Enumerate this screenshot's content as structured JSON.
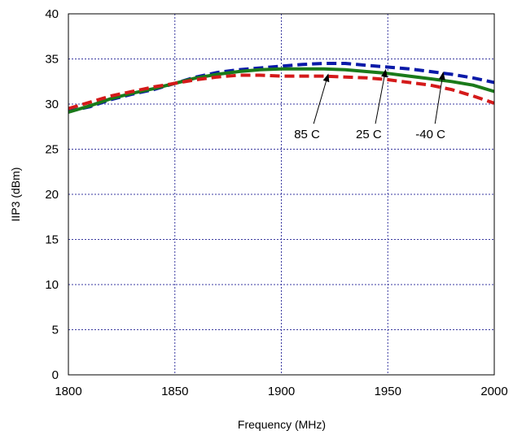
{
  "chart_data": {
    "type": "line",
    "title": "",
    "xlabel": "Frequency (MHz)",
    "ylabel": "IIP3 (dBm)",
    "xlim": [
      1800,
      2000
    ],
    "ylim": [
      0,
      40
    ],
    "xticks": [
      1800,
      1850,
      1900,
      1950,
      2000
    ],
    "yticks": [
      0,
      5,
      10,
      15,
      20,
      25,
      30,
      35,
      40
    ],
    "grid": true,
    "legend": "none",
    "series": [
      {
        "name": "-40 C",
        "color": "#0a1aa8",
        "dash": "dashed",
        "x": [
          1800,
          1810,
          1820,
          1830,
          1840,
          1850,
          1860,
          1870,
          1880,
          1890,
          1900,
          1910,
          1920,
          1930,
          1940,
          1950,
          1960,
          1970,
          1980,
          1990,
          2000
        ],
        "y": [
          29.2,
          29.7,
          30.5,
          31.1,
          31.6,
          32.3,
          33.0,
          33.5,
          33.8,
          34.0,
          34.2,
          34.4,
          34.5,
          34.5,
          34.3,
          34.1,
          33.9,
          33.6,
          33.3,
          32.9,
          32.4
        ]
      },
      {
        "name": "25 C",
        "color": "#1a7a1a",
        "dash": "solid",
        "x": [
          1800,
          1810,
          1820,
          1830,
          1840,
          1850,
          1860,
          1870,
          1880,
          1890,
          1900,
          1910,
          1920,
          1930,
          1940,
          1950,
          1960,
          1970,
          1980,
          1990,
          2000
        ],
        "y": [
          29.1,
          29.8,
          30.6,
          31.2,
          31.7,
          32.3,
          32.9,
          33.3,
          33.6,
          33.8,
          33.9,
          33.9,
          33.9,
          33.8,
          33.6,
          33.4,
          33.1,
          32.8,
          32.5,
          32.1,
          31.4
        ]
      },
      {
        "name": "85 C",
        "color": "#d41a1a",
        "dash": "dashed",
        "x": [
          1800,
          1810,
          1820,
          1830,
          1840,
          1850,
          1860,
          1870,
          1880,
          1890,
          1900,
          1910,
          1920,
          1930,
          1940,
          1950,
          1960,
          1970,
          1980,
          1990,
          2000
        ],
        "y": [
          29.5,
          30.2,
          30.9,
          31.4,
          31.9,
          32.3,
          32.7,
          33.0,
          33.2,
          33.2,
          33.1,
          33.1,
          33.1,
          33.0,
          32.9,
          32.7,
          32.4,
          32.1,
          31.6,
          30.9,
          30.1
        ]
      }
    ],
    "annotations": [
      {
        "text": "85 C",
        "label_x": 1906,
        "label_y": 26.2,
        "arrow_x": 1922,
        "arrow_y": 33.3
      },
      {
        "text": "25 C",
        "label_x": 1935,
        "label_y": 26.2,
        "arrow_x": 1949,
        "arrow_y": 33.8
      },
      {
        "text": "-40 C",
        "label_x": 1963,
        "label_y": 26.2,
        "arrow_x": 1976,
        "arrow_y": 33.5
      }
    ]
  }
}
